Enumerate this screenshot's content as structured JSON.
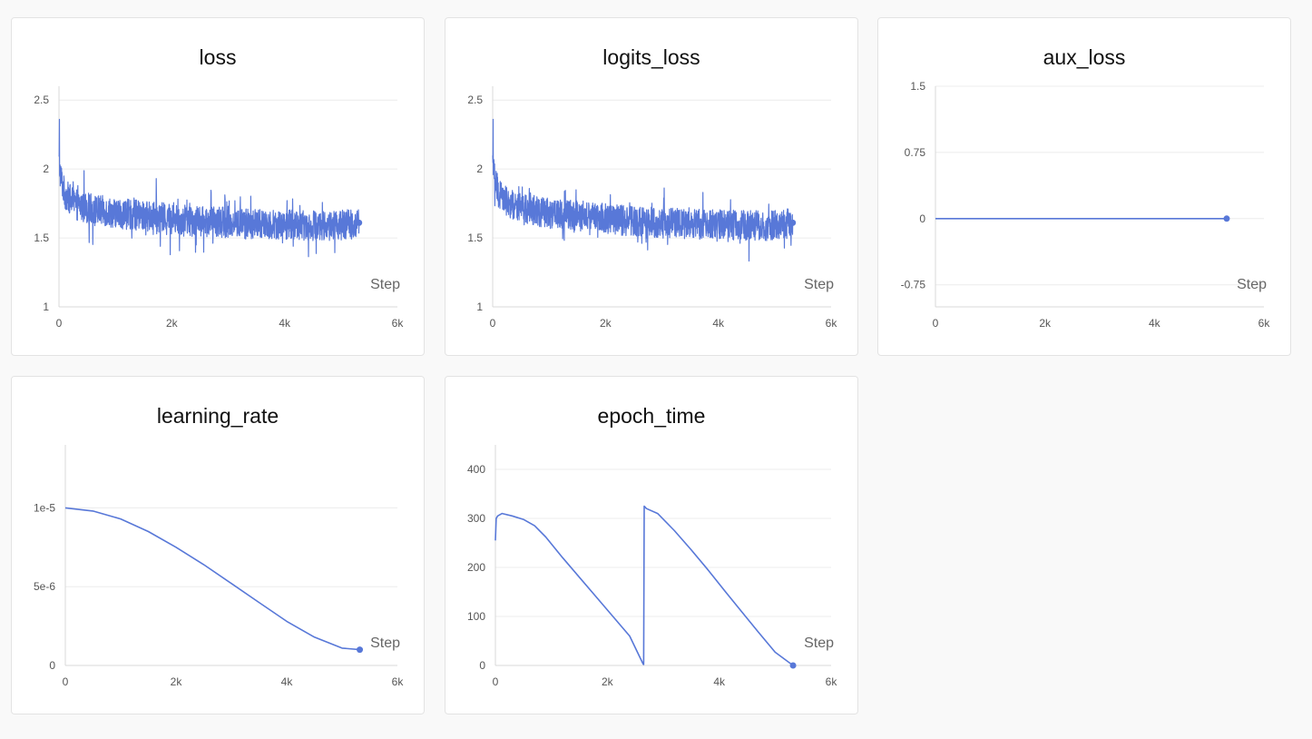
{
  "colors": {
    "series": "#5878d8",
    "grid": "#ececec",
    "axis": "#d9d9d9",
    "panel_bg": "#ffffff",
    "page_bg": "#f9f9f9"
  },
  "chart_data": [
    {
      "id": "loss",
      "title": "loss",
      "type": "line",
      "xlabel": "Step",
      "ylabel": "",
      "xlim": [
        0,
        6000
      ],
      "ylim": [
        1,
        2.6
      ],
      "x_ticks": [
        0,
        2000,
        4000,
        6000
      ],
      "x_tick_labels": [
        "0",
        "2k",
        "4k",
        "6k"
      ],
      "y_ticks": [
        1,
        1.5,
        2,
        2.5
      ],
      "y_tick_labels": [
        "1",
        "1.5",
        "2",
        "2.5"
      ],
      "grid": true,
      "noisy": true,
      "noise_amp": 0.11,
      "series": [
        {
          "x": [
            0,
            30,
            100,
            300,
            600,
            1000,
            1500,
            2000,
            2500,
            3000,
            3500,
            4000,
            4500,
            5000,
            5320
          ],
          "y": [
            2.05,
            1.95,
            1.82,
            1.74,
            1.71,
            1.68,
            1.66,
            1.64,
            1.62,
            1.61,
            1.6,
            1.6,
            1.59,
            1.59,
            1.61
          ]
        }
      ],
      "last_point": {
        "x": 5320,
        "y": 1.61
      }
    },
    {
      "id": "logits_loss",
      "title": "logits_loss",
      "type": "line",
      "xlabel": "Step",
      "ylabel": "",
      "xlim": [
        0,
        6000
      ],
      "ylim": [
        1,
        2.6
      ],
      "x_ticks": [
        0,
        2000,
        4000,
        6000
      ],
      "x_tick_labels": [
        "0",
        "2k",
        "4k",
        "6k"
      ],
      "y_ticks": [
        1,
        1.5,
        2,
        2.5
      ],
      "y_tick_labels": [
        "1",
        "1.5",
        "2",
        "2.5"
      ],
      "grid": true,
      "noisy": true,
      "noise_amp": 0.11,
      "series": [
        {
          "x": [
            0,
            30,
            100,
            300,
            600,
            1000,
            1500,
            2000,
            2500,
            3000,
            3500,
            4000,
            4500,
            5000,
            5320
          ],
          "y": [
            2.05,
            1.95,
            1.82,
            1.74,
            1.71,
            1.68,
            1.66,
            1.64,
            1.62,
            1.61,
            1.6,
            1.6,
            1.59,
            1.59,
            1.61
          ]
        }
      ],
      "last_point": {
        "x": 5320,
        "y": 1.61
      }
    },
    {
      "id": "aux_loss",
      "title": "aux_loss",
      "type": "line",
      "xlabel": "Step",
      "ylabel": "",
      "xlim": [
        0,
        6000
      ],
      "ylim": [
        -1,
        1.5
      ],
      "x_ticks": [
        0,
        2000,
        4000,
        6000
      ],
      "x_tick_labels": [
        "0",
        "2k",
        "4k",
        "6k"
      ],
      "y_ticks": [
        -0.75,
        0,
        0.75,
        1.5
      ],
      "y_tick_labels": [
        "-0.75",
        "0",
        "0.75",
        "1.5"
      ],
      "grid": true,
      "noisy": false,
      "series": [
        {
          "x": [
            0,
            5320
          ],
          "y": [
            0,
            0
          ]
        }
      ],
      "last_point": {
        "x": 5320,
        "y": 0
      }
    },
    {
      "id": "learning_rate",
      "title": "learning_rate",
      "type": "line",
      "xlabel": "Step",
      "ylabel": "",
      "xlim": [
        0,
        6000
      ],
      "ylim": [
        0,
        1.4e-05
      ],
      "x_ticks": [
        0,
        2000,
        4000,
        6000
      ],
      "x_tick_labels": [
        "0",
        "2k",
        "4k",
        "6k"
      ],
      "y_ticks": [
        0,
        5e-06,
        1e-05
      ],
      "y_tick_labels": [
        "0",
        "5e-6",
        "1e-5"
      ],
      "grid": true,
      "noisy": false,
      "series": [
        {
          "x": [
            0,
            500,
            1000,
            1500,
            2000,
            2500,
            3000,
            3500,
            4000,
            4500,
            5000,
            5320
          ],
          "y": [
            1e-05,
            9.8e-06,
            9.3e-06,
            8.5e-06,
            7.5e-06,
            6.4e-06,
            5.2e-06,
            4e-06,
            2.8e-06,
            1.8e-06,
            1.1e-06,
            1e-06
          ]
        }
      ],
      "last_point": {
        "x": 5320,
        "y": 1e-06
      }
    },
    {
      "id": "epoch_time",
      "title": "epoch_time",
      "type": "line",
      "xlabel": "Step",
      "ylabel": "",
      "xlim": [
        0,
        6000
      ],
      "ylim": [
        0,
        450
      ],
      "x_ticks": [
        0,
        2000,
        4000,
        6000
      ],
      "x_tick_labels": [
        "0",
        "2k",
        "4k",
        "6k"
      ],
      "y_ticks": [
        0,
        100,
        200,
        300,
        400
      ],
      "y_tick_labels": [
        "0",
        "100",
        "200",
        "300",
        "400"
      ],
      "grid": true,
      "noisy": false,
      "series": [
        {
          "x": [
            0,
            15,
            40,
            120,
            300,
            500,
            700,
            900,
            1200,
            1500,
            1800,
            2100,
            2400,
            2640,
            2650,
            2660,
            2700,
            2900,
            3200,
            3500,
            3800,
            4100,
            4400,
            4700,
            5000,
            5320
          ],
          "y": [
            255,
            300,
            305,
            310,
            305,
            298,
            285,
            262,
            220,
            180,
            140,
            100,
            60,
            3,
            2,
            325,
            320,
            310,
            275,
            236,
            195,
            152,
            110,
            68,
            27,
            0
          ]
        }
      ],
      "last_point": {
        "x": 5320,
        "y": 0
      }
    }
  ]
}
